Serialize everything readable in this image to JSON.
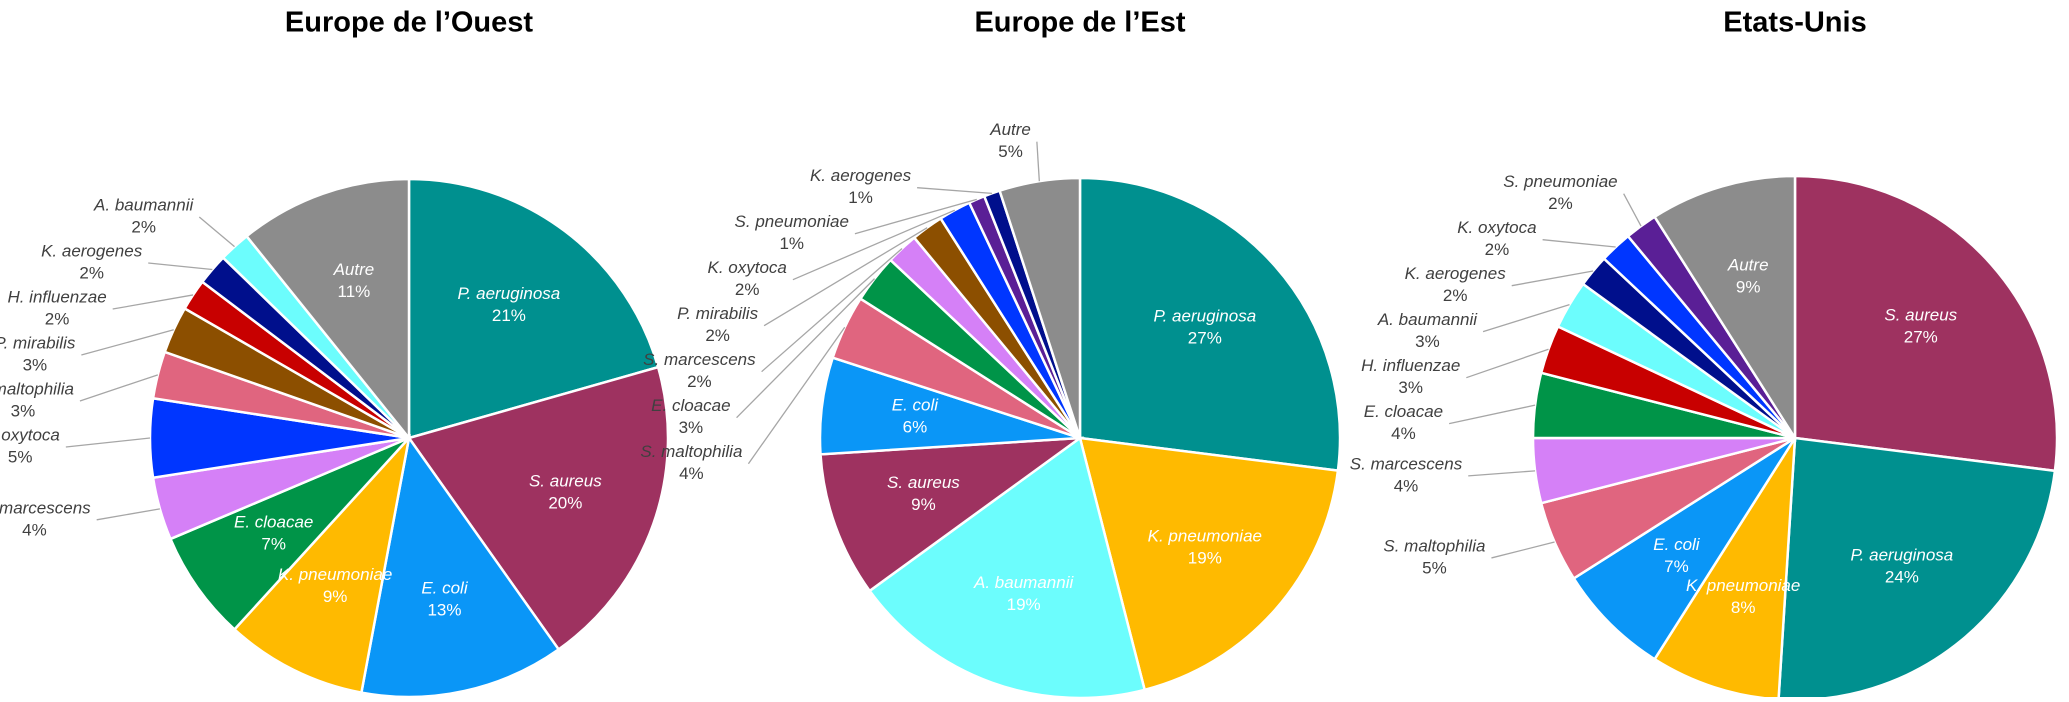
{
  "chart_data": [
    {
      "type": "pie",
      "title": "Europe de l’Ouest",
      "categories": [
        "P. aeruginosa",
        "S. aureus",
        "E. coli",
        "K. pneumoniae",
        "E. cloacae",
        "S. marcescens",
        "K. oxytoca",
        "S. maltophilia",
        "P. mirabilis",
        "H. influenzae",
        "K. aerogenes",
        "A. baumannii",
        "Autre"
      ],
      "values": [
        21,
        20,
        13,
        9,
        7,
        4,
        5,
        3,
        3,
        2,
        2,
        2,
        11
      ],
      "value_labels": [
        "21%",
        "20%",
        "13%",
        "9%",
        "7%",
        "4%",
        "5%",
        "3%",
        "3%",
        "2%",
        "2%",
        "2%",
        "11%"
      ],
      "colors": [
        "#00908f",
        "#9e3260",
        "#0a96f7",
        "#ffba00",
        "#009448",
        "#d580f7",
        "#0036ff",
        "#e0657f",
        "#8c4f00",
        "#c80000",
        "#000f8c",
        "#6cfdfd",
        "#8c8c8c"
      ]
    },
    {
      "type": "pie",
      "title": "Europe de l’Est",
      "categories": [
        "P. aeruginosa",
        "K. pneumoniae",
        "A. baumannii",
        "S. aureus",
        "E. coli",
        "S. maltophilia",
        "E. cloacae",
        "S. marcescens",
        "P. mirabilis",
        "K. oxytoca",
        "S. pneumoniae",
        "K. aerogenes",
        "Autre"
      ],
      "values": [
        27,
        19,
        19,
        9,
        6,
        4,
        3,
        2,
        2,
        2,
        1,
        1,
        5
      ],
      "value_labels": [
        "27%",
        "19%",
        "19%",
        "9%",
        "6%",
        "4%",
        "3%",
        "2%",
        "2%",
        "2%",
        "1%",
        "1%",
        "5%"
      ],
      "colors": [
        "#00908f",
        "#ffba00",
        "#6cfdfd",
        "#9e3260",
        "#0a96f7",
        "#e0657f",
        "#009448",
        "#d580f7",
        "#8c4f00",
        "#0036ff",
        "#5a1f96",
        "#000f8c",
        "#8c8c8c"
      ]
    },
    {
      "type": "pie",
      "title": "Etats-Unis",
      "categories": [
        "S. aureus",
        "P. aeruginosa",
        "K. pneumoniae",
        "E. coli",
        "S. maltophilia",
        "S. marcescens",
        "E. cloacae",
        "H. influenzae",
        "A. baumannii",
        "K. aerogenes",
        "K. oxytoca",
        "S. pneumoniae",
        "Autre"
      ],
      "values": [
        27,
        24,
        8,
        7,
        5,
        4,
        4,
        3,
        3,
        2,
        2,
        2,
        9
      ],
      "value_labels": [
        "27%",
        "24%",
        "8%",
        "7%",
        "5%",
        "4%",
        "4%",
        "3%",
        "3%",
        "2%",
        "2%",
        "2%",
        "9%"
      ],
      "colors": [
        "#9e3260",
        "#00908f",
        "#ffba00",
        "#0a96f7",
        "#e0657f",
        "#d580f7",
        "#009448",
        "#c80000",
        "#6cfdfd",
        "#000f8c",
        "#0036ff",
        "#5a1f96",
        "#8c8c8c"
      ]
    }
  ]
}
